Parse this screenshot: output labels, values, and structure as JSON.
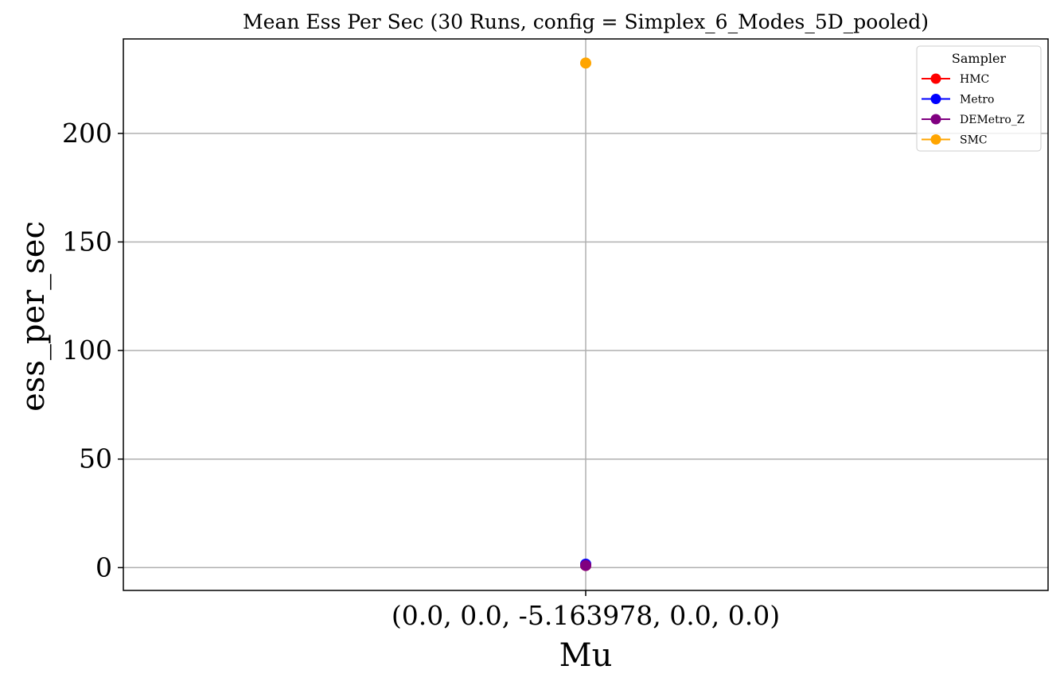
{
  "chart_data": {
    "type": "line",
    "title": "Mean Ess Per Sec (30 Runs, config = Simplex_6_Modes_5D_pooled)",
    "xlabel": "Mu",
    "ylabel": "ess_per_sec",
    "categories": [
      "(0.0, 0.0, -5.163978, 0.0, 0.0)"
    ],
    "yticks": [
      0,
      50,
      100,
      150,
      200
    ],
    "ylim": [
      -10.5,
      243.5
    ],
    "grid": true,
    "legend_title": "Sampler",
    "legend_placement": "top-right",
    "series": [
      {
        "name": "HMC",
        "color": "#ff0000",
        "values": [
          1.0
        ]
      },
      {
        "name": "Metro",
        "color": "#0000ff",
        "values": [
          1.6
        ]
      },
      {
        "name": "DEMetro_Z",
        "color": "#800080",
        "values": [
          1.0
        ]
      },
      {
        "name": "SMC",
        "color": "#ffa500",
        "values": [
          232.4
        ]
      }
    ]
  }
}
